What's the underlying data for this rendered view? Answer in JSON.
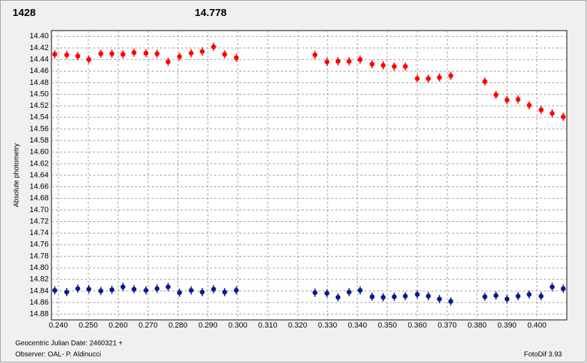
{
  "chart_data": {
    "type": "scatter",
    "y_label": "Absolute photometry",
    "x_label": "Geocentric Julian Date: 2460321 +",
    "observer": "Observer: OAL- P. Aldinucci",
    "software": "FotoDif 3.93",
    "y_inverted": true,
    "grid": true,
    "xlim": [
      0.2377,
      0.41
    ],
    "ylim": [
      14.39,
      14.89
    ],
    "xticks": [
      {
        "value": 0.24,
        "label": "0.240"
      },
      {
        "value": 0.25,
        "label": "0.250"
      },
      {
        "value": 0.26,
        "label": "0.260"
      },
      {
        "value": 0.27,
        "label": "0.270"
      },
      {
        "value": 0.28,
        "label": "0.280"
      },
      {
        "value": 0.29,
        "label": "0.290"
      },
      {
        "value": 0.3,
        "label": "0.300"
      },
      {
        "value": 0.31,
        "label": "0.310"
      },
      {
        "value": 0.32,
        "label": "0.320"
      },
      {
        "value": 0.33,
        "label": "0.330"
      },
      {
        "value": 0.34,
        "label": "0.340"
      },
      {
        "value": 0.35,
        "label": "0.350"
      },
      {
        "value": 0.36,
        "label": "0.360"
      },
      {
        "value": 0.37,
        "label": "0.370"
      },
      {
        "value": 0.38,
        "label": "0.380"
      },
      {
        "value": 0.39,
        "label": "0.390"
      },
      {
        "value": 0.4,
        "label": "0.400"
      }
    ],
    "yticks": [
      {
        "value": 14.4,
        "label": "14.40"
      },
      {
        "value": 14.42,
        "label": "14.42"
      },
      {
        "value": 14.44,
        "label": "14.44"
      },
      {
        "value": 14.46,
        "label": "14.46"
      },
      {
        "value": 14.48,
        "label": "14.48"
      },
      {
        "value": 14.5,
        "label": "14.50"
      },
      {
        "value": 14.52,
        "label": "14.52"
      },
      {
        "value": 14.54,
        "label": "14.54"
      },
      {
        "value": 14.56,
        "label": "14.56"
      },
      {
        "value": 14.58,
        "label": "14.58"
      },
      {
        "value": 14.6,
        "label": "14.60"
      },
      {
        "value": 14.62,
        "label": "14.62"
      },
      {
        "value": 14.64,
        "label": "14.64"
      },
      {
        "value": 14.66,
        "label": "14.66"
      },
      {
        "value": 14.68,
        "label": "14.68"
      },
      {
        "value": 14.7,
        "label": "14.70"
      },
      {
        "value": 14.72,
        "label": "14.72"
      },
      {
        "value": 14.74,
        "label": "14.74"
      },
      {
        "value": 14.76,
        "label": "14.76"
      },
      {
        "value": 14.78,
        "label": "14.78"
      },
      {
        "value": 14.8,
        "label": "14.80"
      },
      {
        "value": 14.82,
        "label": "14.82"
      },
      {
        "value": 14.84,
        "label": "14.84"
      },
      {
        "value": 14.86,
        "label": "14.86"
      },
      {
        "value": 14.88,
        "label": "14.88"
      }
    ],
    "series": [
      {
        "name": "1428",
        "color": "#ff0000",
        "x": [
          0.2388,
          0.2428,
          0.2465,
          0.2502,
          0.2542,
          0.2579,
          0.2616,
          0.2653,
          0.2693,
          0.273,
          0.2767,
          0.2805,
          0.2844,
          0.2881,
          0.2919,
          0.2956,
          0.2995,
          0.3258,
          0.3298,
          0.3335,
          0.3372,
          0.3409,
          0.3449,
          0.3486,
          0.3523,
          0.356,
          0.36,
          0.3637,
          0.3674,
          0.3712,
          0.3826,
          0.3863,
          0.39,
          0.3937,
          0.3974,
          0.4014,
          0.4051,
          0.4088
        ],
        "values": [
          14.431,
          14.432,
          14.434,
          14.44,
          14.43,
          14.43,
          14.431,
          14.428,
          14.429,
          14.43,
          14.444,
          14.435,
          14.429,
          14.426,
          14.418,
          14.431,
          14.437,
          14.432,
          14.444,
          14.443,
          14.443,
          14.44,
          14.448,
          14.45,
          14.452,
          14.452,
          14.473,
          14.473,
          14.471,
          14.468,
          14.478,
          14.501,
          14.51,
          14.509,
          14.519,
          14.527,
          14.533,
          14.539
        ]
      },
      {
        "name": "14.778",
        "color": "#0a1a8a",
        "x": [
          0.2388,
          0.2428,
          0.2465,
          0.2502,
          0.2542,
          0.2579,
          0.2616,
          0.2653,
          0.2693,
          0.273,
          0.2767,
          0.2805,
          0.2844,
          0.2881,
          0.2919,
          0.2956,
          0.2995,
          0.3258,
          0.3298,
          0.3335,
          0.3372,
          0.3409,
          0.3449,
          0.3486,
          0.3523,
          0.356,
          0.36,
          0.3637,
          0.3674,
          0.3712,
          0.3826,
          0.3863,
          0.39,
          0.3937,
          0.3974,
          0.4014,
          0.4051,
          0.4088
        ],
        "values": [
          14.839,
          14.842,
          14.836,
          14.837,
          14.84,
          14.838,
          14.833,
          14.837,
          14.839,
          14.836,
          14.833,
          14.843,
          14.839,
          14.842,
          14.837,
          14.842,
          14.839,
          14.843,
          14.844,
          14.851,
          14.842,
          14.839,
          14.85,
          14.851,
          14.85,
          14.849,
          14.846,
          14.849,
          14.854,
          14.858,
          14.85,
          14.848,
          14.854,
          14.849,
          14.846,
          14.849,
          14.833,
          14.836
        ]
      }
    ]
  }
}
